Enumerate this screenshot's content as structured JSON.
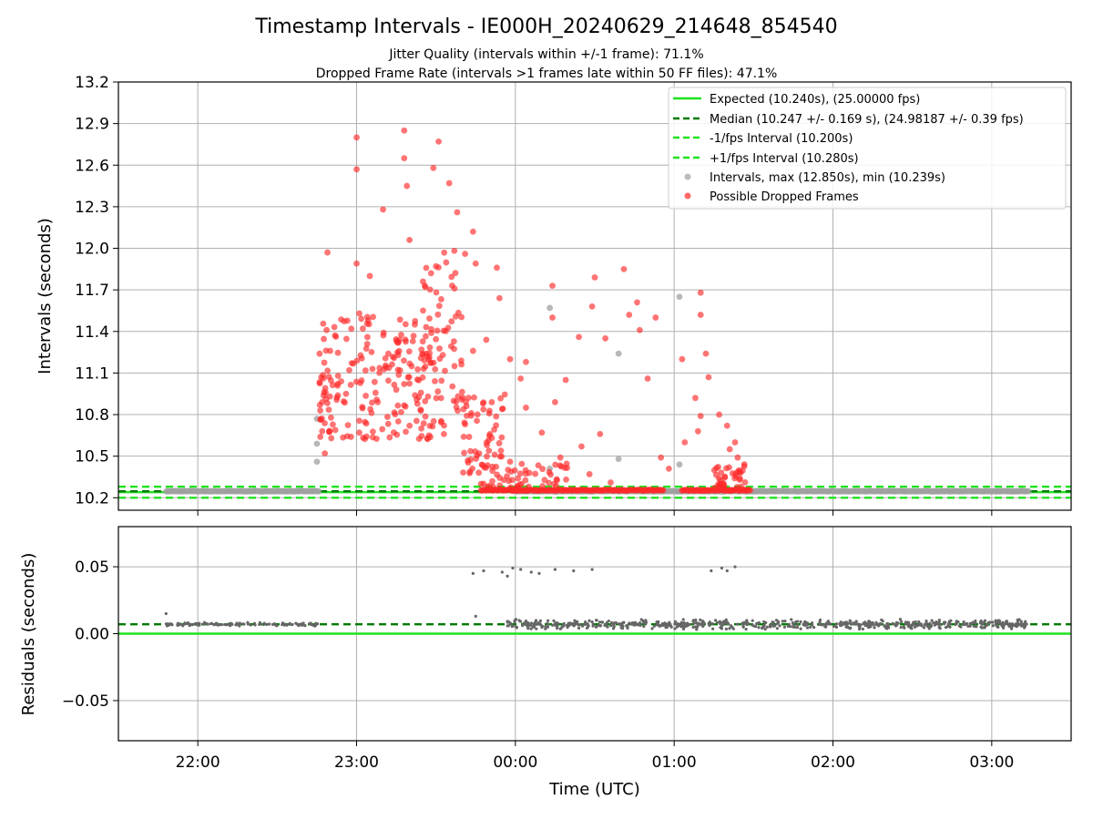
{
  "title": "Timestamp Intervals - IE000H_20240629_214648_854540",
  "subtitle_1": "Jitter Quality (intervals within +/-1 frame): 71.1%",
  "subtitle_2": "Dropped Frame Rate (intervals >1 frames late within 50 FF files): 47.1%",
  "colors": {
    "expected": "#1fe21f",
    "median": "#007b00",
    "interval_band": "#1fe21f",
    "intervals": "#a0a0a0",
    "dropped": "#ff2a2a",
    "residuals": "#666666",
    "grid": "#b0b0b0"
  },
  "chart_data": [
    {
      "type": "scatter",
      "name": "intervals-panel",
      "ylabel": "Intervals (seconds)",
      "ylim": [
        10.11,
        13.2
      ],
      "yticks": [
        "10.2",
        "10.5",
        "10.8",
        "11.1",
        "11.4",
        "11.7",
        "12.0",
        "12.3",
        "12.6",
        "12.9",
        "13.2"
      ],
      "ytick_values": [
        10.2,
        10.5,
        10.8,
        11.1,
        11.4,
        11.7,
        12.0,
        12.3,
        12.6,
        12.9,
        13.2
      ],
      "xlim": [
        "21:30",
        "03:30"
      ],
      "grid": true,
      "legend_position": "top-right",
      "legend": [
        "Expected (10.240s), (25.00000 fps)",
        "Median (10.247 +/- 0.169 s), (24.98187 +/- 0.39 fps)",
        "-1/fps Interval (10.200s)",
        "+1/fps Interval (10.280s)",
        "Intervals, max (12.850s), min (10.239s)",
        "Possible Dropped Frames"
      ],
      "lines": {
        "expected": 10.24,
        "median": 10.247,
        "minus_interval": 10.2,
        "plus_interval": 10.28
      },
      "normal_segments": [
        {
          "x_start": "21:48",
          "x_end": "22:46",
          "y": 10.247
        },
        {
          "x_start": "23:59",
          "x_end": "03:14",
          "y": 10.247
        }
      ],
      "gray_points": [
        {
          "x": "22:45",
          "y": 10.77
        },
        {
          "x": "22:45",
          "y": 10.59
        },
        {
          "x": "22:45",
          "y": 10.46
        },
        {
          "x": "00:13",
          "y": 11.57
        },
        {
          "x": "00:13",
          "y": 10.41
        },
        {
          "x": "00:39",
          "y": 11.24
        },
        {
          "x": "00:39",
          "y": 10.48
        },
        {
          "x": "01:02",
          "y": 11.65
        },
        {
          "x": "01:02",
          "y": 10.44
        }
      ],
      "dropped_points": [
        {
          "x": "23:00",
          "y": 12.8
        },
        {
          "x": "23:00",
          "y": 12.57
        },
        {
          "x": "22:49",
          "y": 11.97
        },
        {
          "x": "23:00",
          "y": 11.89
        },
        {
          "x": "23:05",
          "y": 11.8
        },
        {
          "x": "23:10",
          "y": 12.28
        },
        {
          "x": "23:18",
          "y": 12.85
        },
        {
          "x": "23:18",
          "y": 12.65
        },
        {
          "x": "23:19",
          "y": 12.45
        },
        {
          "x": "23:20",
          "y": 12.06
        },
        {
          "x": "23:29",
          "y": 12.58
        },
        {
          "x": "23:31",
          "y": 12.77
        },
        {
          "x": "23:30",
          "y": 11.87
        },
        {
          "x": "23:26",
          "y": 11.72
        },
        {
          "x": "23:35",
          "y": 12.47
        },
        {
          "x": "23:38",
          "y": 12.26
        },
        {
          "x": "23:44",
          "y": 12.12
        },
        {
          "x": "23:45",
          "y": 11.89
        },
        {
          "x": "23:53",
          "y": 11.86
        },
        {
          "x": "23:54",
          "y": 11.64
        },
        {
          "x": "23:37",
          "y": 11.71
        },
        {
          "x": "23:41",
          "y": 11.96
        },
        {
          "x": "23:44",
          "y": 11.26
        },
        {
          "x": "23:49",
          "y": 11.34
        },
        {
          "x": "23:58",
          "y": 11.2
        },
        {
          "x": "23:55",
          "y": 10.84
        },
        {
          "x": "23:50",
          "y": 10.54
        },
        {
          "x": "00:02",
          "y": 11.06
        },
        {
          "x": "00:04",
          "y": 10.85
        },
        {
          "x": "00:04",
          "y": 11.18
        },
        {
          "x": "00:10",
          "y": 10.67
        },
        {
          "x": "00:14",
          "y": 11.73
        },
        {
          "x": "00:14",
          "y": 11.5
        },
        {
          "x": "00:15",
          "y": 10.89
        },
        {
          "x": "00:17",
          "y": 10.49
        },
        {
          "x": "00:19",
          "y": 11.05
        },
        {
          "x": "00:24",
          "y": 11.36
        },
        {
          "x": "00:25",
          "y": 10.57
        },
        {
          "x": "00:29",
          "y": 11.58
        },
        {
          "x": "00:28",
          "y": 10.37
        },
        {
          "x": "00:32",
          "y": 10.66
        },
        {
          "x": "00:30",
          "y": 11.79
        },
        {
          "x": "00:34",
          "y": 11.35
        },
        {
          "x": "00:36",
          "y": 10.31
        },
        {
          "x": "00:41",
          "y": 11.85
        },
        {
          "x": "00:43",
          "y": 11.52
        },
        {
          "x": "00:46",
          "y": 11.61
        },
        {
          "x": "00:47",
          "y": 11.41
        },
        {
          "x": "00:50",
          "y": 11.06
        },
        {
          "x": "00:53",
          "y": 11.5
        },
        {
          "x": "00:55",
          "y": 10.49
        },
        {
          "x": "00:58",
          "y": 10.41
        },
        {
          "x": "01:03",
          "y": 11.2
        },
        {
          "x": "01:04",
          "y": 10.6
        },
        {
          "x": "01:08",
          "y": 10.92
        },
        {
          "x": "01:10",
          "y": 11.68
        },
        {
          "x": "01:10",
          "y": 11.52
        },
        {
          "x": "01:12",
          "y": 11.24
        },
        {
          "x": "01:13",
          "y": 11.07
        },
        {
          "x": "01:09",
          "y": 10.68
        },
        {
          "x": "01:10",
          "y": 10.79
        },
        {
          "x": "01:17",
          "y": 10.8
        },
        {
          "x": "01:20",
          "y": 10.72
        },
        {
          "x": "01:21",
          "y": 10.55
        },
        {
          "x": "01:23",
          "y": 10.6
        },
        {
          "x": "01:24",
          "y": 10.49
        },
        {
          "x": "23:12",
          "y": 11.24
        },
        {
          "x": "23:15",
          "y": 10.98
        },
        {
          "x": "23:20",
          "y": 10.72
        },
        {
          "x": "23:22",
          "y": 11.45
        },
        {
          "x": "23:27",
          "y": 10.93
        },
        {
          "x": "23:33",
          "y": 10.66
        },
        {
          "x": "23:37",
          "y": 11.15
        },
        {
          "x": "23:41",
          "y": 10.73
        },
        {
          "x": "22:50",
          "y": 11.26
        },
        {
          "x": "22:53",
          "y": 11.08
        },
        {
          "x": "22:56",
          "y": 10.95
        },
        {
          "x": "22:58",
          "y": 11.42
        },
        {
          "x": "23:01",
          "y": 11.53
        },
        {
          "x": "23:04",
          "y": 11.31
        },
        {
          "x": "23:06",
          "y": 11.13
        },
        {
          "x": "23:08",
          "y": 10.89
        },
        {
          "x": "23:01",
          "y": 10.67
        },
        {
          "x": "22:47",
          "y": 10.89
        },
        {
          "x": "22:47",
          "y": 10.68
        },
        {
          "x": "22:48",
          "y": 10.52
        },
        {
          "x": "23:58",
          "y": 10.46
        },
        {
          "x": "00:01",
          "y": 10.34
        },
        {
          "x": "00:05",
          "y": 10.28
        },
        {
          "x": "23:47",
          "y": 10.3
        }
      ],
      "dropped_baseline_runs": [
        {
          "x_start": "23:47",
          "x_end": "00:56",
          "y": 10.25
        },
        {
          "x_start": "01:03",
          "x_end": "01:29",
          "y": 10.25
        }
      ],
      "dropped_clusters": [
        {
          "x_start": "22:46",
          "x_end": "23:30",
          "y_min": 10.62,
          "y_max": 11.52,
          "count": 190
        },
        {
          "x_start": "23:24",
          "x_end": "23:40",
          "y_min": 10.72,
          "y_max": 12.0,
          "count": 60
        },
        {
          "x_start": "23:40",
          "x_end": "23:56",
          "y_min": 10.28,
          "y_max": 10.95,
          "count": 70
        },
        {
          "x_start": "23:56",
          "x_end": "00:20",
          "y_min": 10.26,
          "y_max": 10.45,
          "count": 40
        },
        {
          "x_start": "01:15",
          "x_end": "01:27",
          "y_min": 10.26,
          "y_max": 10.45,
          "count": 40
        }
      ]
    },
    {
      "type": "scatter",
      "name": "residuals-panel",
      "ylabel": "Residuals (seconds)",
      "xlabel": "Time (UTC)",
      "ylim": [
        -0.08,
        0.08
      ],
      "yticks": [
        "−0.05",
        "0.00",
        "0.05"
      ],
      "ytick_values": [
        -0.05,
        0.0,
        0.05
      ],
      "xlim": [
        "21:30",
        "03:30"
      ],
      "xticks": [
        "22:00",
        "23:00",
        "00:00",
        "01:00",
        "02:00",
        "03:00"
      ],
      "grid": true,
      "lines": {
        "expected": 0.0,
        "median": 0.007
      },
      "outliers": [
        {
          "x": "23:44",
          "y": 0.045
        },
        {
          "x": "23:48",
          "y": 0.047
        },
        {
          "x": "23:55",
          "y": 0.046
        },
        {
          "x": "23:57",
          "y": 0.043
        },
        {
          "x": "23:59",
          "y": 0.049
        },
        {
          "x": "00:02",
          "y": 0.048
        },
        {
          "x": "00:06",
          "y": 0.046
        },
        {
          "x": "00:09",
          "y": 0.045
        },
        {
          "x": "00:15",
          "y": 0.048
        },
        {
          "x": "00:22",
          "y": 0.047
        },
        {
          "x": "00:29",
          "y": 0.048
        },
        {
          "x": "01:14",
          "y": 0.047
        },
        {
          "x": "01:18",
          "y": 0.049
        },
        {
          "x": "01:20",
          "y": 0.047
        },
        {
          "x": "01:23",
          "y": 0.05
        },
        {
          "x": "21:48",
          "y": 0.015
        },
        {
          "x": "23:45",
          "y": 0.013
        }
      ],
      "residual_bands": [
        {
          "x_start": "21:48",
          "x_end": "22:46",
          "y_center": 0.007,
          "spread": 0.0015,
          "count": 110
        },
        {
          "x_start": "23:57",
          "x_end": "03:14",
          "y_center": 0.007,
          "spread": 0.004,
          "count": 620
        }
      ]
    }
  ]
}
